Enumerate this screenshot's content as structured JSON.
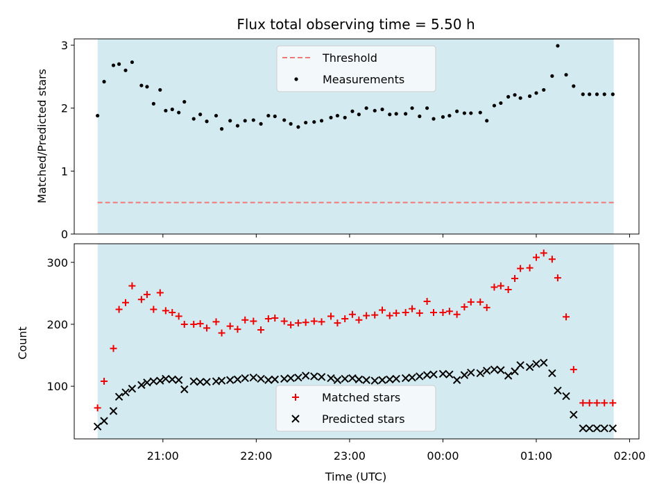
{
  "figure": {
    "title": "Flux total observing time = 5.50 h"
  },
  "chart_data": [
    {
      "type": "scatter",
      "panel": "top",
      "ylabel": "Matched/Predicted stars",
      "xlabel": "",
      "ylim": [
        0,
        3.1
      ],
      "yticks": [
        0,
        1,
        2,
        3
      ],
      "xticks_hours": [
        21,
        22,
        23,
        24,
        25,
        26
      ],
      "xlim_hours": [
        20.05,
        26.1
      ],
      "shaded_span_hours": [
        20.3,
        25.83
      ],
      "threshold": 0.5,
      "legend": {
        "placement": "top-center",
        "entries": [
          "Threshold",
          "Measurements"
        ]
      },
      "colors": {
        "shade": "#d3ebf0",
        "threshold": "#f07878",
        "points": "#000000"
      },
      "series": [
        {
          "name": "Measurements",
          "x": [
            20.3,
            20.37,
            20.47,
            20.53,
            20.6,
            20.67,
            20.77,
            20.83,
            20.9,
            20.97,
            21.03,
            21.1,
            21.17,
            21.23,
            21.33,
            21.4,
            21.47,
            21.57,
            21.63,
            21.72,
            21.8,
            21.88,
            21.97,
            22.05,
            22.13,
            22.2,
            22.3,
            22.37,
            22.45,
            22.53,
            22.62,
            22.7,
            22.8,
            22.87,
            22.95,
            23.03,
            23.1,
            23.18,
            23.27,
            23.35,
            23.43,
            23.5,
            23.6,
            23.67,
            23.75,
            23.83,
            23.9,
            24.0,
            24.07,
            24.15,
            24.23,
            24.3,
            24.4,
            24.47,
            24.55,
            24.62,
            24.7,
            24.77,
            24.83,
            24.93,
            25.0,
            25.08,
            25.17,
            25.23,
            25.32,
            25.4,
            25.5,
            25.57,
            25.65,
            25.73,
            25.82
          ],
          "y": [
            1.88,
            2.42,
            2.68,
            2.7,
            2.6,
            2.73,
            2.36,
            2.34,
            2.07,
            2.29,
            1.96,
            1.98,
            1.93,
            2.1,
            1.83,
            1.9,
            1.79,
            1.88,
            1.67,
            1.8,
            1.72,
            1.8,
            1.81,
            1.75,
            1.88,
            1.87,
            1.81,
            1.75,
            1.7,
            1.77,
            1.78,
            1.8,
            1.85,
            1.88,
            1.85,
            1.95,
            1.9,
            2.0,
            1.96,
            1.98,
            1.9,
            1.91,
            1.91,
            2.0,
            1.87,
            2.0,
            1.83,
            1.86,
            1.88,
            1.95,
            1.92,
            1.92,
            1.93,
            1.8,
            2.04,
            2.08,
            2.18,
            2.21,
            2.16,
            2.19,
            2.24,
            2.29,
            2.51,
            2.99,
            2.53,
            2.35,
            2.22,
            2.22,
            2.22,
            2.22,
            2.22
          ]
        }
      ]
    },
    {
      "type": "scatter",
      "panel": "bottom",
      "xlabel": "Time (UTC)",
      "ylabel": "Count",
      "ylim": [
        15,
        330
      ],
      "yticks": [
        100,
        200,
        300
      ],
      "xticks": [
        "21:00",
        "22:00",
        "23:00",
        "00:00",
        "01:00",
        "02:00"
      ],
      "xticks_hours": [
        21,
        22,
        23,
        24,
        25,
        26
      ],
      "xlim_hours": [
        20.05,
        26.1
      ],
      "shaded_span_hours": [
        20.3,
        25.83
      ],
      "legend": {
        "placement": "bottom-center",
        "entries": [
          "Matched stars",
          "Predicted stars"
        ]
      },
      "colors": {
        "shade": "#d3ebf0",
        "matched": "#ee0000",
        "predicted": "#000000"
      },
      "series": [
        {
          "name": "Matched stars",
          "marker": "plus",
          "x": [
            20.3,
            20.37,
            20.47,
            20.53,
            20.6,
            20.67,
            20.77,
            20.83,
            20.9,
            20.97,
            21.03,
            21.1,
            21.17,
            21.23,
            21.33,
            21.4,
            21.47,
            21.57,
            21.63,
            21.72,
            21.8,
            21.88,
            21.97,
            22.05,
            22.13,
            22.2,
            22.3,
            22.37,
            22.45,
            22.53,
            22.62,
            22.7,
            22.8,
            22.87,
            22.95,
            23.03,
            23.1,
            23.18,
            23.27,
            23.35,
            23.43,
            23.5,
            23.6,
            23.67,
            23.75,
            23.83,
            23.9,
            24.0,
            24.07,
            24.15,
            24.23,
            24.3,
            24.4,
            24.47,
            24.55,
            24.62,
            24.7,
            24.77,
            24.83,
            24.93,
            25.0,
            25.08,
            25.17,
            25.23,
            25.32,
            25.4,
            25.5,
            25.57,
            25.65,
            25.73,
            25.82
          ],
          "y": [
            65,
            108,
            161,
            224,
            235,
            262,
            240,
            248,
            224,
            251,
            222,
            219,
            213,
            200,
            200,
            201,
            194,
            204,
            186,
            197,
            192,
            207,
            205,
            191,
            209,
            210,
            205,
            199,
            202,
            203,
            205,
            204,
            213,
            202,
            209,
            216,
            207,
            214,
            215,
            223,
            214,
            218,
            219,
            225,
            218,
            237,
            219,
            219,
            221,
            216,
            228,
            236,
            236,
            227,
            260,
            262,
            256,
            274,
            290,
            291,
            308,
            315,
            305,
            275,
            212,
            127,
            73,
            73,
            73,
            73,
            73
          ]
        },
        {
          "name": "Predicted stars",
          "marker": "x",
          "x": [
            20.3,
            20.37,
            20.47,
            20.53,
            20.6,
            20.67,
            20.77,
            20.83,
            20.9,
            20.97,
            21.03,
            21.1,
            21.17,
            21.23,
            21.33,
            21.4,
            21.47,
            21.57,
            21.63,
            21.72,
            21.8,
            21.88,
            21.97,
            22.05,
            22.13,
            22.2,
            22.3,
            22.37,
            22.45,
            22.53,
            22.62,
            22.7,
            22.8,
            22.87,
            22.95,
            23.03,
            23.1,
            23.18,
            23.27,
            23.35,
            23.43,
            23.5,
            23.6,
            23.67,
            23.75,
            23.83,
            23.9,
            24.0,
            24.07,
            24.15,
            24.23,
            24.3,
            24.4,
            24.47,
            24.55,
            24.62,
            24.7,
            24.77,
            24.83,
            24.93,
            25.0,
            25.08,
            25.17,
            25.23,
            25.32,
            25.4,
            25.5,
            25.57,
            25.65,
            25.73,
            25.82
          ],
          "y": [
            35,
            44,
            60,
            83,
            90,
            96,
            102,
            106,
            108,
            109,
            112,
            111,
            110,
            95,
            108,
            107,
            107,
            108,
            109,
            110,
            111,
            113,
            114,
            112,
            110,
            111,
            112,
            113,
            114,
            117,
            116,
            115,
            113,
            110,
            112,
            113,
            111,
            110,
            109,
            110,
            111,
            112,
            113,
            114,
            116,
            118,
            119,
            120,
            119,
            110,
            118,
            122,
            121,
            125,
            127,
            126,
            117,
            124,
            134,
            131,
            136,
            138,
            121,
            93,
            84,
            54,
            32,
            32,
            32,
            32,
            32
          ]
        }
      ]
    }
  ]
}
